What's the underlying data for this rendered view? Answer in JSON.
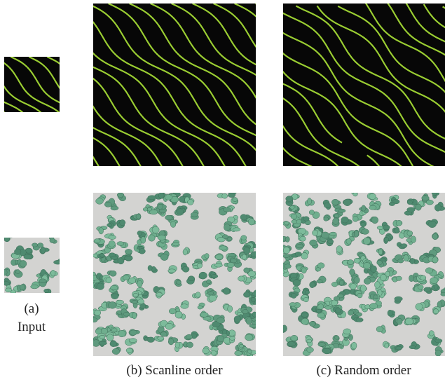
{
  "captions": [
    "(a)",
    "Input",
    "(b) Scanline order",
    "(c) Random order"
  ]
}
